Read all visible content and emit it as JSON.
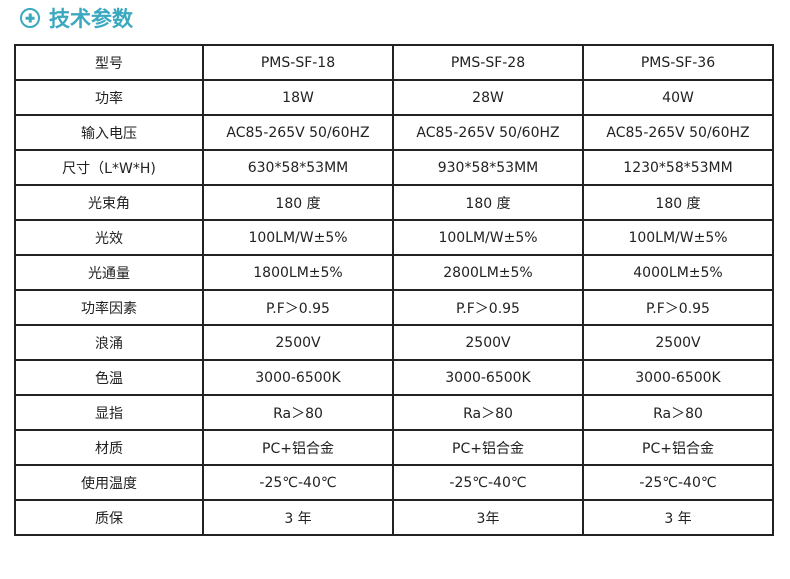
{
  "title": "技术参数",
  "colors": {
    "accent": "#3aa8bf"
  },
  "rows": [
    [
      "型号",
      "PMS-SF-18",
      "PMS-SF-28",
      "PMS-SF-36"
    ],
    [
      "功率",
      "18W",
      "28W",
      "40W"
    ],
    [
      "输入电压",
      "AC85-265V 50/60HZ",
      "AC85-265V 50/60HZ",
      "AC85-265V 50/60HZ"
    ],
    [
      "尺寸（L*W*H)",
      "630*58*53MM",
      "930*58*53MM",
      "1230*58*53MM"
    ],
    [
      "光束角",
      "180 度",
      "180 度",
      "180 度"
    ],
    [
      "光效",
      "100LM/W±5%",
      "100LM/W±5%",
      "100LM/W±5%"
    ],
    [
      "光通量",
      "1800LM±5%",
      "2800LM±5%",
      "4000LM±5%"
    ],
    [
      "功率因素",
      "P.F＞0.95",
      "P.F＞0.95",
      "P.F＞0.95"
    ],
    [
      "浪涌",
      "2500V",
      "2500V",
      "2500V"
    ],
    [
      "色温",
      "3000-6500K",
      "3000-6500K",
      "3000-6500K"
    ],
    [
      "显指",
      "Ra＞80",
      "Ra＞80",
      "Ra＞80"
    ],
    [
      "材质",
      "PC+铝合金",
      "PC+铝合金",
      "PC+铝合金"
    ],
    [
      "使用温度",
      "-25℃-40℃",
      "-25℃-40℃",
      "-25℃-40℃"
    ],
    [
      "质保",
      "3 年",
      "3年",
      "3 年"
    ]
  ]
}
